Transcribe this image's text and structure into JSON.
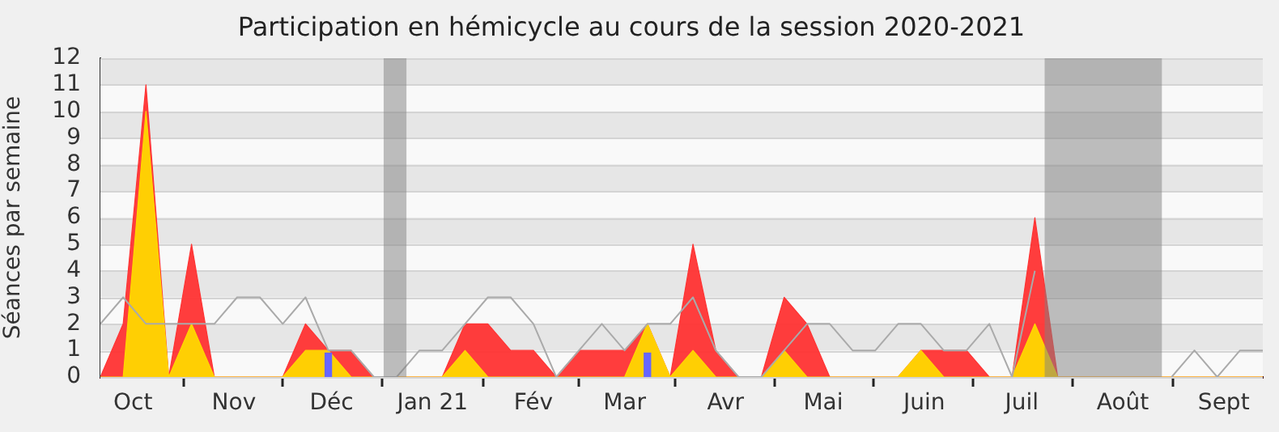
{
  "chart_data": {
    "type": "area",
    "title": "Participation en hémicycle au cours de la session 2020-2021",
    "ylabel": "Séances par semaine",
    "x": [
      "2020-09-21",
      "2020-09-28",
      "2020-10-05",
      "2020-10-12",
      "2020-10-19",
      "2020-10-26",
      "2020-11-02",
      "2020-11-09",
      "2020-11-16",
      "2020-11-23",
      "2020-11-30",
      "2020-12-07",
      "2020-12-14",
      "2020-12-21",
      "2020-12-28",
      "2021-01-04",
      "2021-01-11",
      "2021-01-18",
      "2021-01-25",
      "2021-02-01",
      "2021-02-08",
      "2021-02-15",
      "2021-02-22",
      "2021-03-01",
      "2021-03-08",
      "2021-03-15",
      "2021-03-22",
      "2021-03-29",
      "2021-04-05",
      "2021-04-12",
      "2021-04-19",
      "2021-04-26",
      "2021-05-03",
      "2021-05-10",
      "2021-05-17",
      "2021-05-24",
      "2021-05-31",
      "2021-06-07",
      "2021-06-14",
      "2021-06-21",
      "2021-06-28",
      "2021-07-05",
      "2021-07-12",
      "2021-07-19",
      "2021-07-26",
      "2021-08-02",
      "2021-08-09",
      "2021-08-16",
      "2021-08-23",
      "2021-08-30",
      "2021-09-06",
      "2021-09-13"
    ],
    "series": [
      {
        "color": "#ff3333",
        "values": [
          0,
          2,
          11,
          0,
          5,
          0,
          0,
          0,
          0,
          2,
          1,
          1,
          0,
          0,
          0,
          0,
          2,
          2,
          1,
          1,
          0,
          1,
          1,
          1,
          2,
          0,
          5,
          1,
          0,
          0,
          3,
          2,
          0,
          0,
          0,
          0,
          1,
          1,
          1,
          0,
          0,
          6,
          0,
          0,
          0,
          0,
          0,
          0,
          0,
          0,
          0,
          0
        ]
      },
      {
        "color": "#ffd700",
        "values": [
          0,
          0,
          10,
          0,
          2,
          0,
          0,
          0,
          0,
          1,
          1,
          0,
          0,
          0,
          0,
          0,
          1,
          0,
          0,
          0,
          0,
          0,
          0,
          0,
          2,
          0,
          1,
          0,
          0,
          0,
          1,
          0,
          0,
          0,
          0,
          0,
          1,
          0,
          0,
          0,
          0,
          2,
          0,
          0,
          0,
          0,
          0,
          0,
          0,
          0,
          0,
          0
        ]
      },
      {
        "type": "line",
        "color": "#aaaaaa",
        "values": [
          2,
          3,
          2,
          2,
          2,
          2,
          3,
          3,
          2,
          3,
          1,
          1,
          0,
          0,
          1,
          1,
          2,
          3,
          3,
          2,
          0,
          1,
          2,
          1,
          2,
          2,
          3,
          1,
          0,
          0,
          1,
          2,
          2,
          1,
          1,
          2,
          2,
          1,
          1,
          2,
          0,
          4,
          null,
          null,
          null,
          null,
          null,
          0,
          1,
          0,
          1,
          1
        ]
      },
      {
        "type": "bar",
        "color": "#6666ff",
        "values": [
          null,
          null,
          null,
          null,
          null,
          null,
          null,
          null,
          null,
          null,
          0.9,
          null,
          null,
          null,
          null,
          null,
          null,
          null,
          null,
          null,
          null,
          null,
          null,
          null,
          0.9,
          null,
          null,
          null,
          null,
          null,
          null,
          null,
          null,
          null,
          null,
          null,
          null,
          null,
          null,
          null,
          null,
          null,
          null,
          null,
          null,
          null,
          null,
          null,
          null,
          null,
          null,
          null
        ]
      }
    ],
    "xlim": [
      "2020-09-21",
      "2021-09-13"
    ],
    "xticks": [
      {
        "value": "2020-10-01",
        "label": "Oct"
      },
      {
        "value": "2020-11-01",
        "label": "Nov"
      },
      {
        "value": "2020-12-01",
        "label": "Déc"
      },
      {
        "value": "2021-01-01",
        "label": "Jan 21"
      },
      {
        "value": "2021-02-01",
        "label": "Fév"
      },
      {
        "value": "2021-03-01",
        "label": "Mar"
      },
      {
        "value": "2021-04-01",
        "label": "Avr"
      },
      {
        "value": "2021-05-01",
        "label": "Mai"
      },
      {
        "value": "2021-06-01",
        "label": "Juin"
      },
      {
        "value": "2021-07-01",
        "label": "Juil"
      },
      {
        "value": "2021-08-01",
        "label": "Août"
      },
      {
        "value": "2021-09-01",
        "label": "Sept"
      }
    ],
    "ylim": [
      0,
      12
    ],
    "yticks": [
      0,
      1,
      2,
      3,
      4,
      5,
      6,
      7,
      8,
      9,
      10,
      11,
      12
    ],
    "bands": [
      {
        "axis": "x",
        "from": "2020-12-17",
        "to": "2020-12-24"
      },
      {
        "axis": "x",
        "from": "2021-07-08",
        "to": "2021-08-13"
      }
    ],
    "grid": "y",
    "legend": false,
    "marker": "none"
  }
}
